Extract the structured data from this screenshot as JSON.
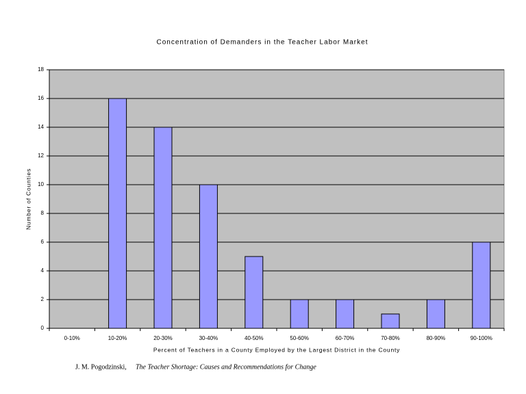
{
  "chart_data": {
    "type": "bar",
    "title": "Concentration of Demanders in the Teacher Labor Market",
    "x_label": "Percent of Teachers in a County Employed by the Largest District in the County",
    "y_label": "Number of Counties",
    "categories": [
      "0-10%",
      "10-20%",
      "20-30%",
      "30-40%",
      "40-50%",
      "50-60%",
      "60-70%",
      "70-80%",
      "80-90%",
      "90-100%"
    ],
    "values": [
      0,
      16,
      14,
      10,
      5,
      2,
      2,
      1,
      2,
      6
    ],
    "color": "#9999ff",
    "ylim": [
      0,
      18
    ],
    "yticks": [
      0,
      2,
      4,
      6,
      8,
      10,
      12,
      14,
      16,
      18
    ],
    "grid": true
  },
  "footer": {
    "author": "J. M. Pogodzinski,",
    "work": "The Teacher Shortage: Causes and Recommendations for Change"
  }
}
